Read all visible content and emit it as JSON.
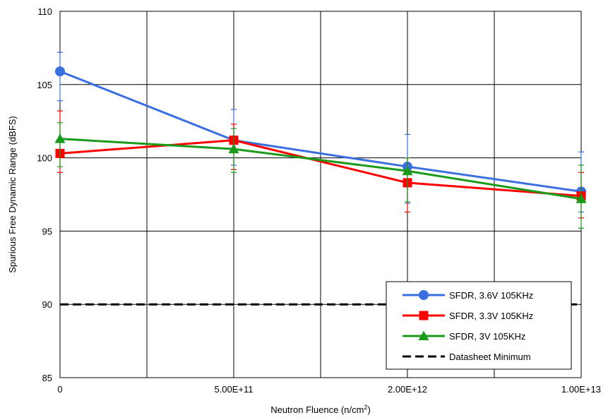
{
  "chart_data": {
    "type": "line",
    "title": "",
    "xlabel": "Neutron Fluence (n/cm",
    "xlabel_sup": "2",
    "xlabel_end": ")",
    "ylabel": "Spurious Free Dynamic Range (dBFS)",
    "categories": [
      "0",
      "5.00E+11",
      "2.00E+12",
      "1.00E+13"
    ],
    "ylim": [
      85,
      110
    ],
    "yticks": [
      85,
      90,
      95,
      100,
      105,
      110
    ],
    "grid": true,
    "legend_position": "bottom-right",
    "series": [
      {
        "name": "SFDR, 3.6V 105KHz",
        "color": "#3a6fe0",
        "marker": "circle",
        "values": [
          105.9,
          101.2,
          99.4,
          97.7
        ],
        "err_low": [
          103.9,
          99.5,
          96.9,
          96.3
        ],
        "err_high": [
          107.2,
          103.3,
          101.6,
          100.4
        ]
      },
      {
        "name": "SFDR, 3.3V 105KHz",
        "color": "#ff0000",
        "marker": "square",
        "values": [
          100.3,
          101.2,
          98.3,
          97.4
        ],
        "err_low": [
          99.0,
          99.2,
          96.3,
          95.9
        ],
        "err_high": [
          103.2,
          102.3,
          100.0,
          99.0
        ]
      },
      {
        "name": "SFDR, 3V 105KHz",
        "color": "#1a9a1a",
        "marker": "triangle",
        "values": [
          101.3,
          100.6,
          99.1,
          97.2
        ],
        "err_low": [
          99.4,
          99.0,
          97.0,
          95.2
        ],
        "err_high": [
          102.4,
          102.0,
          100.0,
          99.5
        ]
      },
      {
        "name": "Datasheet Minimum",
        "color": "#000000",
        "marker": "none",
        "dashed": true,
        "values": [
          90,
          90,
          90,
          90
        ]
      }
    ]
  }
}
